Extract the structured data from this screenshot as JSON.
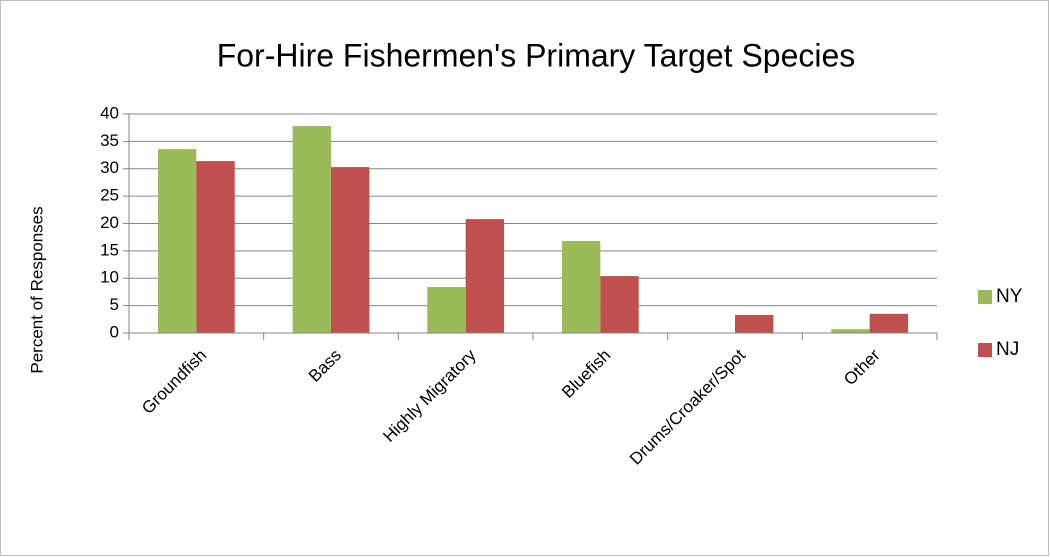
{
  "chart_data": {
    "type": "bar",
    "title": "For-Hire Fishermen's Primary Target Species",
    "y_label": "Percent of Responses",
    "categories": [
      "Groundfish",
      "Bass",
      "Highly Migratory",
      "Bluefish",
      "Drums/Croaker/Spot",
      "Other"
    ],
    "series": [
      {
        "name": "NY",
        "color": "#9bbb59",
        "values": [
          33.6,
          37.8,
          8.4,
          16.8,
          0,
          0.7
        ]
      },
      {
        "name": "NJ",
        "color": "#c0504d",
        "values": [
          31.4,
          30.3,
          20.8,
          10.4,
          3.3,
          3.5
        ]
      }
    ],
    "ylim": [
      0,
      40
    ],
    "yticks": [
      0,
      5,
      10,
      15,
      20,
      25,
      30,
      35,
      40
    ],
    "grid": true,
    "legend": "right"
  }
}
